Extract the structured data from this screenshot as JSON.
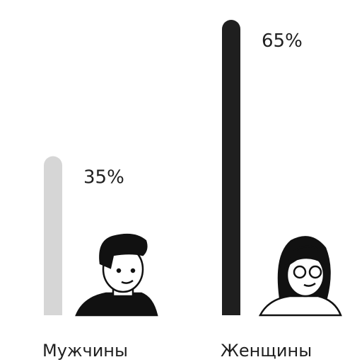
{
  "chart_data": {
    "type": "bar",
    "categories": [
      "Мужчины",
      "Женщины"
    ],
    "values": [
      35,
      65
    ],
    "value_labels": [
      "35%",
      "65%"
    ],
    "colors": [
      "#d6d6d6",
      "#1f1f1f"
    ]
  }
}
